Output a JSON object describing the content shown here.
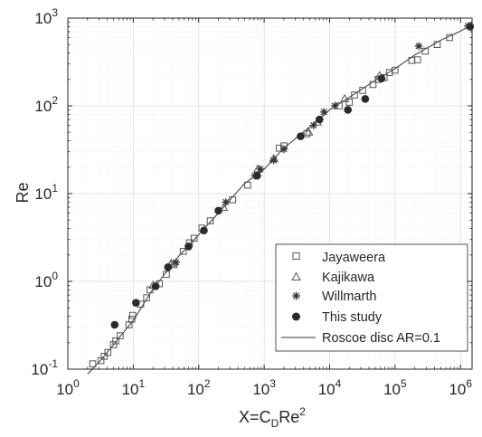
{
  "chart_data": {
    "type": "scatter",
    "title": "",
    "xlabel": "X=C",
    "xlabel_sub": "D",
    "xlabel_tail": "Re",
    "xlabel_sup": "2",
    "ylabel": "Re",
    "xscale": "log",
    "yscale": "log",
    "xlim": [
      1,
      1500000
    ],
    "ylim": [
      0.1,
      1000
    ],
    "x_ticks": [
      {
        "value": 1,
        "base": "10",
        "exp": "0"
      },
      {
        "value": 10,
        "base": "10",
        "exp": "1"
      },
      {
        "value": 100,
        "base": "10",
        "exp": "2"
      },
      {
        "value": 1000,
        "base": "10",
        "exp": "3"
      },
      {
        "value": 10000,
        "base": "10",
        "exp": "4"
      },
      {
        "value": 100000,
        "base": "10",
        "exp": "5"
      },
      {
        "value": 1000000,
        "base": "10",
        "exp": "6"
      }
    ],
    "y_ticks": [
      {
        "value": 0.1,
        "base": "10",
        "exp": "-1"
      },
      {
        "value": 1,
        "base": "10",
        "exp": "0"
      },
      {
        "value": 10,
        "base": "10",
        "exp": "1"
      },
      {
        "value": 100,
        "base": "10",
        "exp": "2"
      },
      {
        "value": 1000,
        "base": "10",
        "exp": "3"
      }
    ],
    "grid": true,
    "legend_position": "bottom-right",
    "series": [
      {
        "name": "Jayaweera",
        "marker": "square-open",
        "color": "#555555",
        "points": [
          [
            2.4,
            0.115
          ],
          [
            3.2,
            0.125
          ],
          [
            3.6,
            0.14
          ],
          [
            4.1,
            0.155
          ],
          [
            5.0,
            0.19
          ],
          [
            5.4,
            0.21
          ],
          [
            6.3,
            0.24
          ],
          [
            8.6,
            0.32
          ],
          [
            9.5,
            0.37
          ],
          [
            9.8,
            0.41
          ],
          [
            13,
            0.55
          ],
          [
            16,
            0.65
          ],
          [
            18,
            0.8
          ],
          [
            25,
            0.94
          ],
          [
            32,
            1.2
          ],
          [
            42,
            1.55
          ],
          [
            58,
            2.2
          ],
          [
            72,
            2.75
          ],
          [
            85,
            3.1
          ],
          [
            112,
            4.05
          ],
          [
            150,
            4.9
          ],
          [
            330,
            8.5
          ],
          [
            560,
            12.5
          ],
          [
            1700,
            33
          ],
          [
            2000,
            35
          ],
          [
            4500,
            48
          ],
          [
            14000,
            100
          ],
          [
            20000,
            110
          ],
          [
            24000,
            133
          ],
          [
            32000,
            150
          ],
          [
            46000,
            175
          ],
          [
            55000,
            200
          ],
          [
            68000,
            210
          ],
          [
            82000,
            240
          ],
          [
            100000,
            255
          ],
          [
            180000,
            330
          ],
          [
            220000,
            335
          ],
          [
            290000,
            420
          ],
          [
            440000,
            500
          ],
          [
            680000,
            600
          ]
        ]
      },
      {
        "name": "Kajikawa",
        "marker": "triangle-open",
        "color": "#555555",
        "points": [
          [
            20,
            0.9
          ],
          [
            38,
            1.6
          ],
          [
            240,
            6.9
          ],
          [
            800,
            19
          ],
          [
            1400,
            25
          ],
          [
            4800,
            50
          ],
          [
            6500,
            65
          ],
          [
            17000,
            120
          ],
          [
            58000,
            220
          ]
        ]
      },
      {
        "name": "Willmarth",
        "marker": "asterisk",
        "color": "#333333",
        "points": [
          [
            45,
            1.65
          ],
          [
            260,
            8
          ],
          [
            720,
            16
          ],
          [
            870,
            19
          ],
          [
            1400,
            24
          ],
          [
            2000,
            32
          ],
          [
            5700,
            60
          ],
          [
            8200,
            85
          ],
          [
            12000,
            100
          ],
          [
            230000,
            480
          ],
          [
            1300000,
            810
          ]
        ]
      },
      {
        "name": "This study",
        "marker": "circle-filled",
        "color": "#2b2b2b",
        "points": [
          [
            5.2,
            0.32
          ],
          [
            11,
            0.57
          ],
          [
            22,
            0.88
          ],
          [
            34,
            1.45
          ],
          [
            70,
            2.5
          ],
          [
            120,
            3.8
          ],
          [
            200,
            6.4
          ],
          [
            780,
            16
          ],
          [
            3600,
            45
          ],
          [
            7000,
            70
          ],
          [
            19000,
            90
          ],
          [
            35000,
            120
          ],
          [
            62000,
            205
          ],
          [
            1400000,
            800
          ]
        ]
      }
    ],
    "reference_line": {
      "name": "Roscoe disc AR=0.1",
      "color": "#333333",
      "points": [
        [
          2,
          0.088
        ],
        [
          3,
          0.12
        ],
        [
          5,
          0.19
        ],
        [
          10,
          0.36
        ],
        [
          20,
          0.82
        ],
        [
          50,
          1.95
        ],
        [
          100,
          3.4
        ],
        [
          200,
          6.0
        ],
        [
          500,
          13
        ],
        [
          1000,
          19
        ],
        [
          2000,
          33
        ],
        [
          5000,
          58
        ],
        [
          10000,
          90
        ],
        [
          20000,
          125
        ],
        [
          50000,
          195
        ],
        [
          100000,
          265
        ],
        [
          200000,
          380
        ],
        [
          500000,
          560
        ],
        [
          1000000,
          710
        ],
        [
          1500000,
          850
        ]
      ]
    }
  }
}
